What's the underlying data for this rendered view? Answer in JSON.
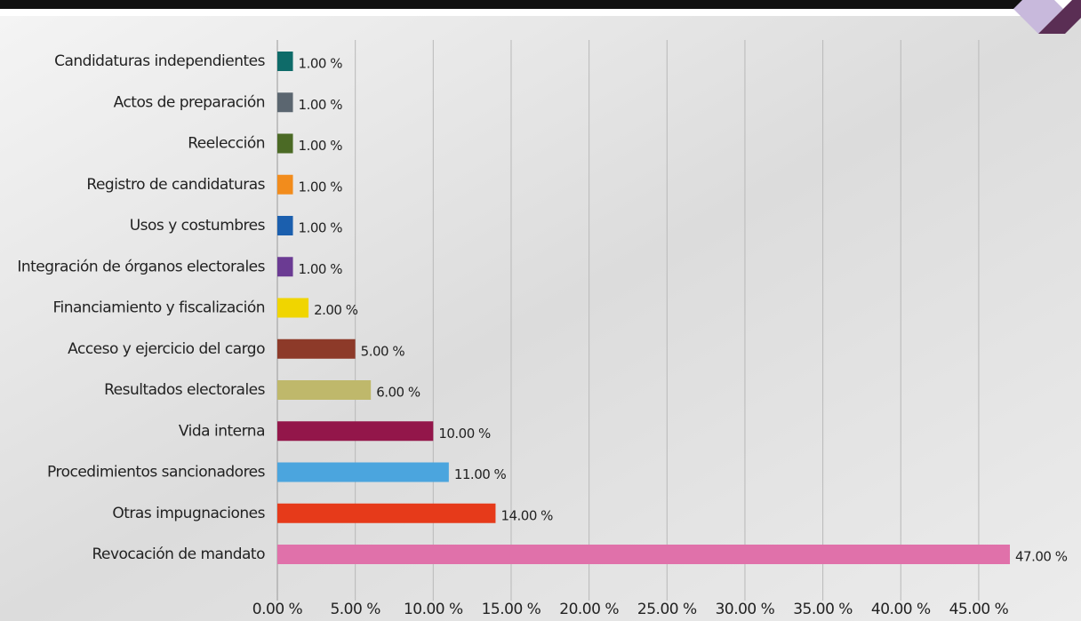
{
  "chart_data": {
    "type": "bar",
    "orientation": "horizontal",
    "categories": [
      "Candidaturas independientes",
      "Actos de preparación",
      "Reelección",
      "Registro de candidaturas",
      "Usos y costumbres",
      "Integración de órganos electorales",
      "Financiamiento y fiscalización",
      "Acceso y ejercicio del cargo",
      "Resultados electorales",
      "Vida interna",
      "Procedimientos sancionadores",
      "Otras impugnaciones",
      "Revocación de mandato"
    ],
    "values": [
      1,
      1,
      1,
      1,
      1,
      1,
      2,
      5,
      6,
      10,
      11,
      14,
      47
    ],
    "value_labels": [
      "1.00 %",
      "1.00 %",
      "1.00 %",
      "1.00 %",
      "1.00 %",
      "1.00 %",
      "2.00 %",
      "5.00 %",
      "6.00 %",
      "10.00 %",
      "11.00 %",
      "14.00 %",
      "47.00 %"
    ],
    "colors": [
      "#0e6b69",
      "#5b6670",
      "#4b6a25",
      "#f28c1c",
      "#1b5fae",
      "#6b3b93",
      "#f0d500",
      "#8d3a29",
      "#bfb86b",
      "#93164a",
      "#4ba5de",
      "#e63a1a",
      "#e071aa"
    ],
    "xlim": [
      0,
      47
    ],
    "xticks": [
      {
        "value": 0,
        "label": "0.00 %"
      },
      {
        "value": 5,
        "label": "5.00 %"
      },
      {
        "value": 10,
        "label": "10.00 %"
      },
      {
        "value": 15,
        "label": "15.00 %"
      },
      {
        "value": 20,
        "label": "20.00 %"
      },
      {
        "value": 25,
        "label": "25.00 %"
      },
      {
        "value": 30,
        "label": "30.00 %"
      },
      {
        "value": 35,
        "label": "35.00 %"
      },
      {
        "value": 40,
        "label": "40.00 %"
      },
      {
        "value": 45,
        "label": "45.00 %"
      }
    ],
    "grid": true
  }
}
